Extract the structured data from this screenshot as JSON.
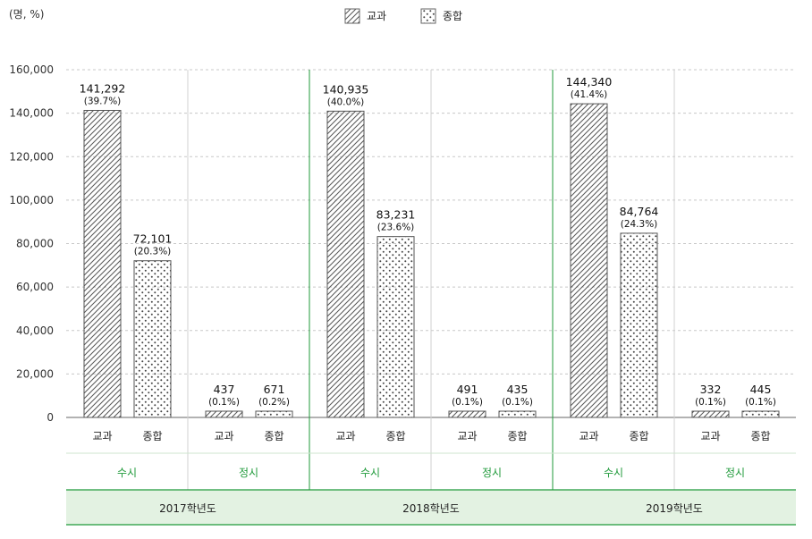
{
  "unit_label": "(명, %)",
  "colors": {
    "accent": "#1f9a3a",
    "band_fill": "#e3f2e2",
    "grid": "#c8c8c8",
    "bar_stroke": "#555555"
  },
  "chart_data": {
    "type": "bar",
    "legend": {
      "position": "top-center",
      "items": [
        {
          "name": "교과",
          "pattern": "diagonal-hatch"
        },
        {
          "name": "종합",
          "pattern": "dots"
        }
      ]
    },
    "ylim": [
      0,
      160000
    ],
    "yticks": [
      0,
      20000,
      40000,
      60000,
      80000,
      100000,
      120000,
      140000,
      160000
    ],
    "ytick_labels": [
      "0",
      "20,000",
      "40,000",
      "60,000",
      "80,000",
      "100,000",
      "120,000",
      "140,000",
      "160,000"
    ],
    "grid": true,
    "years": [
      {
        "label": "2017학년도",
        "groups": [
          {
            "label": "수시",
            "bars": [
              {
                "category": "교과",
                "value": 141292,
                "value_label": "141,292",
                "pct_label": "(39.7%)"
              },
              {
                "category": "종합",
                "value": 72101,
                "value_label": "72,101",
                "pct_label": "(20.3%)"
              }
            ]
          },
          {
            "label": "정시",
            "bars": [
              {
                "category": "교과",
                "value": 437,
                "value_label": "437",
                "pct_label": "(0.1%)"
              },
              {
                "category": "종합",
                "value": 671,
                "value_label": "671",
                "pct_label": "(0.2%)"
              }
            ]
          }
        ]
      },
      {
        "label": "2018학년도",
        "groups": [
          {
            "label": "수시",
            "bars": [
              {
                "category": "교과",
                "value": 140935,
                "value_label": "140,935",
                "pct_label": "(40.0%)"
              },
              {
                "category": "종합",
                "value": 83231,
                "value_label": "83,231",
                "pct_label": "(23.6%)"
              }
            ]
          },
          {
            "label": "정시",
            "bars": [
              {
                "category": "교과",
                "value": 491,
                "value_label": "491",
                "pct_label": "(0.1%)"
              },
              {
                "category": "종합",
                "value": 435,
                "value_label": "435",
                "pct_label": "(0.1%)"
              }
            ]
          }
        ]
      },
      {
        "label": "2019학년도",
        "groups": [
          {
            "label": "수시",
            "bars": [
              {
                "category": "교과",
                "value": 144340,
                "value_label": "144,340",
                "pct_label": "(41.4%)"
              },
              {
                "category": "종합",
                "value": 84764,
                "value_label": "84,764",
                "pct_label": "(24.3%)"
              }
            ]
          },
          {
            "label": "정시",
            "bars": [
              {
                "category": "교과",
                "value": 332,
                "value_label": "332",
                "pct_label": "(0.1%)"
              },
              {
                "category": "종합",
                "value": 445,
                "value_label": "445",
                "pct_label": "(0.1%)"
              }
            ]
          }
        ]
      }
    ]
  }
}
